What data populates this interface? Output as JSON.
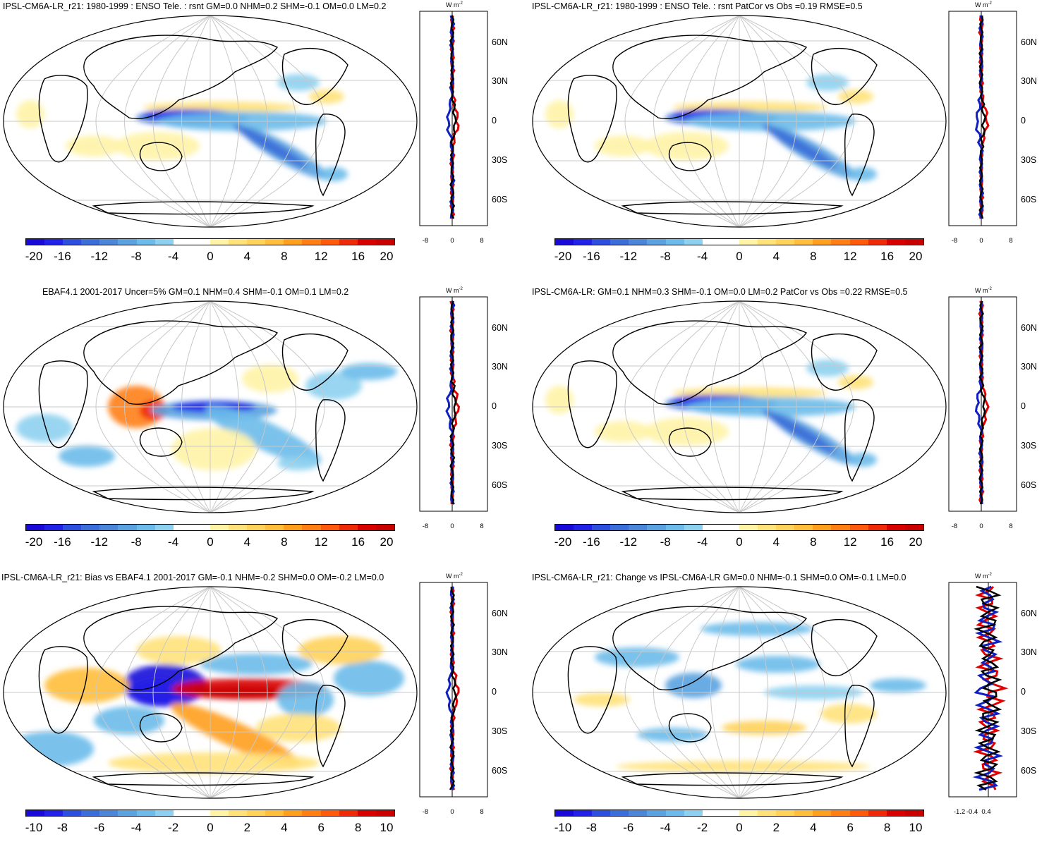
{
  "colors": {
    "div22": [
      "#1a0ad9",
      "#2121e8",
      "#2d4fdf",
      "#3b6ed8",
      "#4c86d9",
      "#5aa2e0",
      "#6cbbea",
      "#8ed0f0",
      "#ffffff",
      "#ffffff",
      "#fff3a6",
      "#ffe27a",
      "#ffd25a",
      "#ffbe3c",
      "#ff9f1e",
      "#ff7f14",
      "#ff5a0c",
      "#ef2a08",
      "#d90000",
      "#c80000"
    ],
    "land": "#000000",
    "grid": "#c8c8c8",
    "obs_line": "#e00000",
    "model_line": "#1020c0",
    "mean_line": "#000000"
  },
  "panels": [
    {
      "title": "IPSL-CM6A-LR_r21: 1980-1999 : ENSO Tele. : rsnt GM=0.0 NHM=0.2 SHM=-0.1 OM=0.0 LM=0.2",
      "colorbar_labels": [
        "-20",
        "-16",
        "-12",
        "-8",
        "-4",
        "0",
        "4",
        "8",
        "12",
        "16",
        "20"
      ],
      "profile_unit": "W m",
      "profile_unit_exp": "-2",
      "lat_labels": [
        "60N",
        "30N",
        "0",
        "30S",
        "60S"
      ],
      "profile_ticks": [
        "-8",
        "0",
        "8"
      ],
      "field": "enso"
    },
    {
      "title": "IPSL-CM6A-LR_r21: 1980-1999 : ENSO Tele. : rsnt PatCor vs Obs =0.19 RMSE=0.5",
      "colorbar_labels": [
        "-20",
        "-16",
        "-12",
        "-8",
        "-4",
        "0",
        "4",
        "8",
        "12",
        "16",
        "20"
      ],
      "profile_unit": "W m",
      "profile_unit_exp": "-2",
      "lat_labels": [
        "60N",
        "30N",
        "0",
        "30S",
        "60S"
      ],
      "profile_ticks": [
        "-8",
        "0",
        "8"
      ],
      "field": "enso"
    },
    {
      "title": "EBAF4.1 2001-2017 Uncer=5% GM=0.1 NHM=0.4 SHM=-0.1 OM=0.1 LM=0.2",
      "colorbar_labels": [
        "-20",
        "-16",
        "-12",
        "-8",
        "-4",
        "0",
        "4",
        "8",
        "12",
        "16",
        "20"
      ],
      "profile_unit": "W m",
      "profile_unit_exp": "-2",
      "lat_labels": [
        "60N",
        "30N",
        "0",
        "30S",
        "60S"
      ],
      "profile_ticks": [
        "-8",
        "0",
        "8"
      ],
      "field": "obs"
    },
    {
      "title": "IPSL-CM6A-LR: GM=0.1 NHM=0.3 SHM=-0.1 OM=0.0 LM=0.2 PatCor vs Obs =0.22 RMSE=0.5",
      "colorbar_labels": [
        "-20",
        "-16",
        "-12",
        "-8",
        "-4",
        "0",
        "4",
        "8",
        "12",
        "16",
        "20"
      ],
      "profile_unit": "W m",
      "profile_unit_exp": "-2",
      "lat_labels": [
        "60N",
        "30N",
        "0",
        "30S",
        "60S"
      ],
      "profile_ticks": [
        "-8",
        "0",
        "8"
      ],
      "field": "enso2"
    },
    {
      "title": "IPSL-CM6A-LR_r21: Bias vs EBAF4.1 2001-2017 GM=-0.1 NHM=-0.2 SHM=0.0 OM=-0.2 LM=0.0",
      "colorbar_labels": [
        "-10",
        "-8",
        "-6",
        "-4",
        "-2",
        "0",
        "2",
        "4",
        "6",
        "8",
        "10"
      ],
      "profile_unit": "W m",
      "profile_unit_exp": "-2",
      "lat_labels": [
        "60N",
        "30N",
        "0",
        "30S",
        "60S"
      ],
      "profile_ticks": [
        "-8",
        "0",
        "8"
      ],
      "field": "bias"
    },
    {
      "title": "IPSL-CM6A-LR_r21: Change vs IPSL-CM6A-LR GM=0.0 NHM=-0.1 SHM=0.0 OM=-0.1 LM=0.0",
      "colorbar_labels": [
        "-10",
        "-8",
        "-6",
        "-4",
        "-2",
        "0",
        "2",
        "4",
        "6",
        "8",
        "10"
      ],
      "profile_unit": "W m",
      "profile_unit_exp": "-2",
      "lat_labels": [
        "60N",
        "30N",
        "0",
        "30S",
        "60S"
      ],
      "profile_ticks": [
        "-1.2",
        "-0.4",
        "0.4"
      ],
      "field": "change"
    }
  ]
}
